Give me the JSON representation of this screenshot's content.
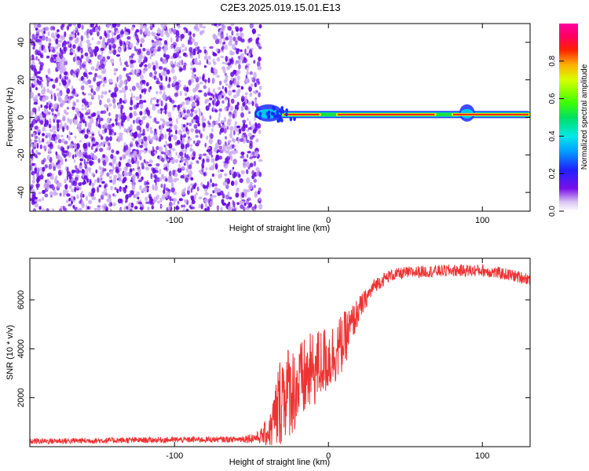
{
  "title": "C2E3.2025.019.15.01.E13",
  "colors": {
    "snr_line": "#ee3333",
    "scatter_main": "#6a0de8",
    "scatter_light": "#c8a6f2",
    "axis": "#000000",
    "background": "#ffffff"
  },
  "chart_data": [
    {
      "type": "heatmap",
      "title": "C2E3.2025.019.15.01.E13",
      "xlabel": "Height of straight line (km)",
      "ylabel": "Frequency (Hz)",
      "xlim": [
        -194,
        131
      ],
      "ylim": [
        -50,
        50
      ],
      "x_ticks": [
        -100,
        0,
        100
      ],
      "x_tick_labels": [
        "-100",
        "0",
        "100"
      ],
      "y_ticks": [
        -40,
        -20,
        0,
        20,
        40
      ],
      "y_tick_labels": [
        "-40",
        "-20",
        "0",
        "20",
        "40"
      ],
      "grid": false,
      "noise_region_x": [
        -194,
        -48
      ],
      "signal_band": {
        "frequency_hz": 1.5,
        "x_start": -48,
        "x_end": 131,
        "strong_segments": [
          [
            -30,
            -5
          ],
          [
            5,
            70
          ],
          [
            80,
            131
          ]
        ],
        "spread_segments": [
          [
            -48,
            -30
          ],
          [
            85,
            95
          ]
        ]
      },
      "colorbar": {
        "label": "Normalized spectral amplitude",
        "range": [
          0,
          1
        ],
        "ticks": [
          0.0,
          0.2,
          0.4,
          0.6,
          0.8
        ],
        "tick_labels": [
          "0.0",
          "0.2",
          "0.4",
          "0.6",
          "0.8"
        ],
        "colormap": "rainbow (white-purple-blue-cyan-green-yellow-red-magenta)"
      }
    },
    {
      "type": "line",
      "xlabel": "Height of straight line (km)",
      "ylabel": "SNR (10 * v/v)",
      "xlim": [
        -194,
        131
      ],
      "ylim": [
        0,
        7700
      ],
      "x_ticks": [
        -100,
        0,
        100
      ],
      "x_tick_labels": [
        "-100",
        "0",
        "100"
      ],
      "y_ticks": [
        2000,
        4000,
        6000
      ],
      "y_tick_labels": [
        "2000",
        "4000",
        "6000"
      ],
      "grid": false,
      "series": [
        {
          "color": "#ee3333",
          "x": [
            -194,
            -150,
            -100,
            -60,
            -45,
            -38,
            -33,
            -30,
            -25,
            -20,
            -15,
            -10,
            -5,
            0,
            5,
            10,
            15,
            20,
            25,
            30,
            40,
            50,
            60,
            80,
            100,
            115,
            131
          ],
          "y": [
            220,
            250,
            280,
            300,
            380,
            650,
            1500,
            2200,
            2300,
            2400,
            2800,
            3100,
            3400,
            3600,
            3900,
            4300,
            5000,
            5600,
            6100,
            6600,
            7000,
            7100,
            7150,
            7200,
            7200,
            7050,
            6850
          ],
          "y_noise": [
            120,
            120,
            120,
            120,
            250,
            700,
            1800,
            2000,
            1900,
            1800,
            1700,
            1600,
            1500,
            1400,
            1300,
            1200,
            800,
            550,
            380,
            300,
            250,
            250,
            250,
            250,
            250,
            250,
            250
          ]
        }
      ]
    }
  ]
}
